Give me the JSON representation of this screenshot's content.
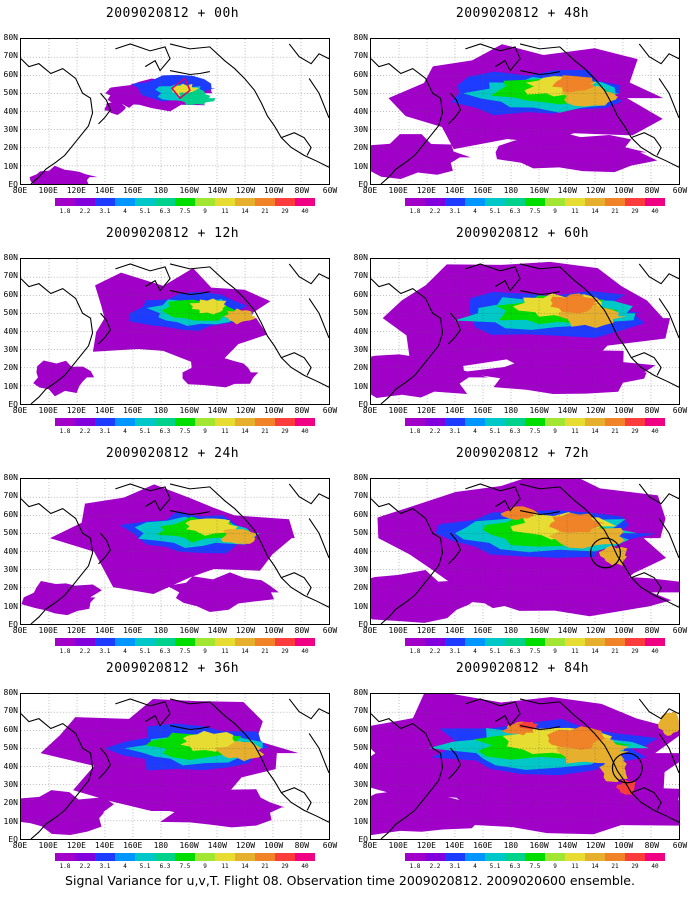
{
  "caption": "Signal Variance for u,v,T. Flight 08. Observation time 2009020812. 2009020600 ensemble.",
  "lat_labels": [
    "80N",
    "70N",
    "60N",
    "50N",
    "40N",
    "30N",
    "20N",
    "10N",
    "EQ"
  ],
  "lon_labels": [
    "80E",
    "100E",
    "120E",
    "140E",
    "160E",
    "180",
    "160W",
    "140W",
    "120W",
    "100W",
    "80W",
    "60W"
  ],
  "colorbar": {
    "labels": [
      "1.8",
      "2.2",
      "3.1",
      "4",
      "5.1",
      "6.3",
      "7.5",
      "9",
      "11",
      "14",
      "21",
      "29",
      "40"
    ],
    "colors": [
      "#a000c8",
      "#8200dc",
      "#1e3cff",
      "#0096ff",
      "#00c8c8",
      "#00d28c",
      "#00dc00",
      "#a0e632",
      "#e6dc32",
      "#e6af2d",
      "#f08228",
      "#fa3c3c",
      "#f00082"
    ]
  },
  "panels": [
    {
      "title": "2009020812 + 00h",
      "lead_hours": 0
    },
    {
      "title": "2009020812 + 48h",
      "lead_hours": 48
    },
    {
      "title": "2009020812 + 12h",
      "lead_hours": 12
    },
    {
      "title": "2009020812 + 60h",
      "lead_hours": 60
    },
    {
      "title": "2009020812 + 24h",
      "lead_hours": 24
    },
    {
      "title": "2009020812 + 72h",
      "lead_hours": 72
    },
    {
      "title": "2009020812 + 36h",
      "lead_hours": 36
    },
    {
      "title": "2009020812 + 84h",
      "lead_hours": 84
    }
  ]
}
